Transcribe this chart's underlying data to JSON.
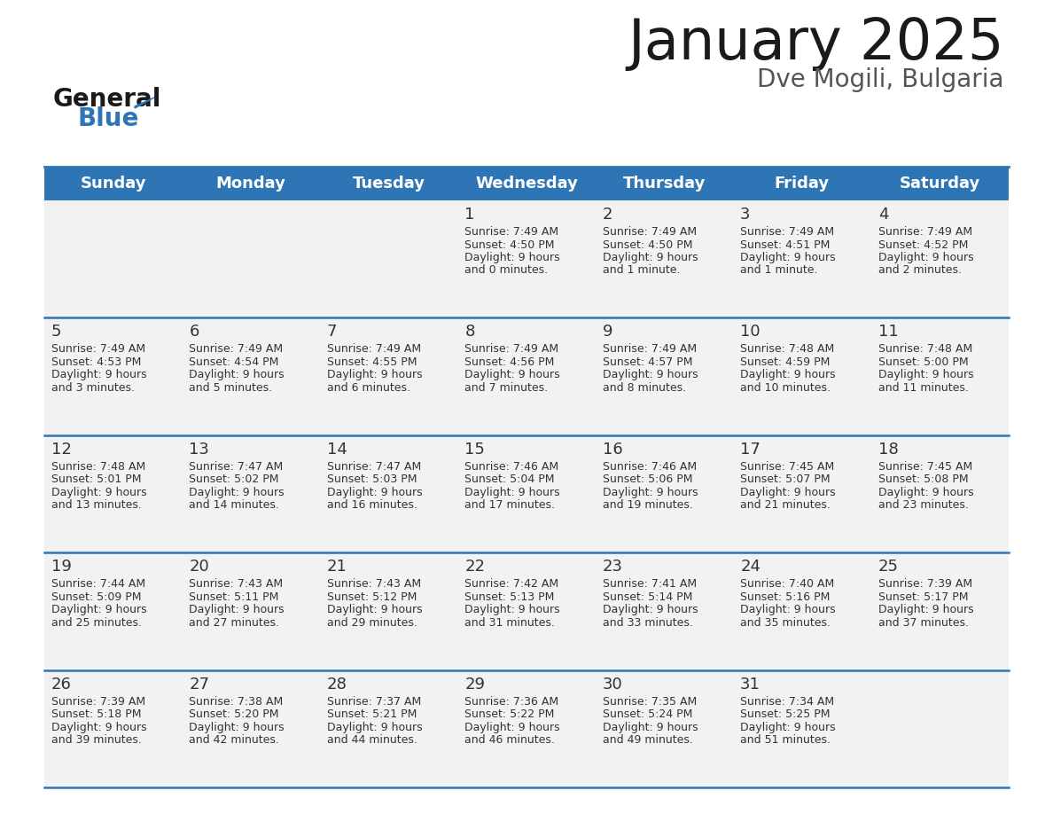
{
  "title": "January 2025",
  "subtitle": "Dve Mogili, Bulgaria",
  "days_of_week": [
    "Sunday",
    "Monday",
    "Tuesday",
    "Wednesday",
    "Thursday",
    "Friday",
    "Saturday"
  ],
  "header_bg": "#2E75B6",
  "header_text": "#FFFFFF",
  "cell_bg": "#F2F2F2",
  "border_color": "#2E75B6",
  "text_color": "#333333",
  "calendar_data": [
    [
      null,
      null,
      null,
      {
        "day": 1,
        "sunrise": "7:49 AM",
        "sunset": "4:50 PM",
        "daylight": "9 hours",
        "daylight2": "and 0 minutes."
      },
      {
        "day": 2,
        "sunrise": "7:49 AM",
        "sunset": "4:50 PM",
        "daylight": "9 hours",
        "daylight2": "and 1 minute."
      },
      {
        "day": 3,
        "sunrise": "7:49 AM",
        "sunset": "4:51 PM",
        "daylight": "9 hours",
        "daylight2": "and 1 minute."
      },
      {
        "day": 4,
        "sunrise": "7:49 AM",
        "sunset": "4:52 PM",
        "daylight": "9 hours",
        "daylight2": "and 2 minutes."
      }
    ],
    [
      {
        "day": 5,
        "sunrise": "7:49 AM",
        "sunset": "4:53 PM",
        "daylight": "9 hours",
        "daylight2": "and 3 minutes."
      },
      {
        "day": 6,
        "sunrise": "7:49 AM",
        "sunset": "4:54 PM",
        "daylight": "9 hours",
        "daylight2": "and 5 minutes."
      },
      {
        "day": 7,
        "sunrise": "7:49 AM",
        "sunset": "4:55 PM",
        "daylight": "9 hours",
        "daylight2": "and 6 minutes."
      },
      {
        "day": 8,
        "sunrise": "7:49 AM",
        "sunset": "4:56 PM",
        "daylight": "9 hours",
        "daylight2": "and 7 minutes."
      },
      {
        "day": 9,
        "sunrise": "7:49 AM",
        "sunset": "4:57 PM",
        "daylight": "9 hours",
        "daylight2": "and 8 minutes."
      },
      {
        "day": 10,
        "sunrise": "7:48 AM",
        "sunset": "4:59 PM",
        "daylight": "9 hours",
        "daylight2": "and 10 minutes."
      },
      {
        "day": 11,
        "sunrise": "7:48 AM",
        "sunset": "5:00 PM",
        "daylight": "9 hours",
        "daylight2": "and 11 minutes."
      }
    ],
    [
      {
        "day": 12,
        "sunrise": "7:48 AM",
        "sunset": "5:01 PM",
        "daylight": "9 hours",
        "daylight2": "and 13 minutes."
      },
      {
        "day": 13,
        "sunrise": "7:47 AM",
        "sunset": "5:02 PM",
        "daylight": "9 hours",
        "daylight2": "and 14 minutes."
      },
      {
        "day": 14,
        "sunrise": "7:47 AM",
        "sunset": "5:03 PM",
        "daylight": "9 hours",
        "daylight2": "and 16 minutes."
      },
      {
        "day": 15,
        "sunrise": "7:46 AM",
        "sunset": "5:04 PM",
        "daylight": "9 hours",
        "daylight2": "and 17 minutes."
      },
      {
        "day": 16,
        "sunrise": "7:46 AM",
        "sunset": "5:06 PM",
        "daylight": "9 hours",
        "daylight2": "and 19 minutes."
      },
      {
        "day": 17,
        "sunrise": "7:45 AM",
        "sunset": "5:07 PM",
        "daylight": "9 hours",
        "daylight2": "and 21 minutes."
      },
      {
        "day": 18,
        "sunrise": "7:45 AM",
        "sunset": "5:08 PM",
        "daylight": "9 hours",
        "daylight2": "and 23 minutes."
      }
    ],
    [
      {
        "day": 19,
        "sunrise": "7:44 AM",
        "sunset": "5:09 PM",
        "daylight": "9 hours",
        "daylight2": "and 25 minutes."
      },
      {
        "day": 20,
        "sunrise": "7:43 AM",
        "sunset": "5:11 PM",
        "daylight": "9 hours",
        "daylight2": "and 27 minutes."
      },
      {
        "day": 21,
        "sunrise": "7:43 AM",
        "sunset": "5:12 PM",
        "daylight": "9 hours",
        "daylight2": "and 29 minutes."
      },
      {
        "day": 22,
        "sunrise": "7:42 AM",
        "sunset": "5:13 PM",
        "daylight": "9 hours",
        "daylight2": "and 31 minutes."
      },
      {
        "day": 23,
        "sunrise": "7:41 AM",
        "sunset": "5:14 PM",
        "daylight": "9 hours",
        "daylight2": "and 33 minutes."
      },
      {
        "day": 24,
        "sunrise": "7:40 AM",
        "sunset": "5:16 PM",
        "daylight": "9 hours",
        "daylight2": "and 35 minutes."
      },
      {
        "day": 25,
        "sunrise": "7:39 AM",
        "sunset": "5:17 PM",
        "daylight": "9 hours",
        "daylight2": "and 37 minutes."
      }
    ],
    [
      {
        "day": 26,
        "sunrise": "7:39 AM",
        "sunset": "5:18 PM",
        "daylight": "9 hours",
        "daylight2": "and 39 minutes."
      },
      {
        "day": 27,
        "sunrise": "7:38 AM",
        "sunset": "5:20 PM",
        "daylight": "9 hours",
        "daylight2": "and 42 minutes."
      },
      {
        "day": 28,
        "sunrise": "7:37 AM",
        "sunset": "5:21 PM",
        "daylight": "9 hours",
        "daylight2": "and 44 minutes."
      },
      {
        "day": 29,
        "sunrise": "7:36 AM",
        "sunset": "5:22 PM",
        "daylight": "9 hours",
        "daylight2": "and 46 minutes."
      },
      {
        "day": 30,
        "sunrise": "7:35 AM",
        "sunset": "5:24 PM",
        "daylight": "9 hours",
        "daylight2": "and 49 minutes."
      },
      {
        "day": 31,
        "sunrise": "7:34 AM",
        "sunset": "5:25 PM",
        "daylight": "9 hours",
        "daylight2": "and 51 minutes."
      },
      null
    ]
  ]
}
